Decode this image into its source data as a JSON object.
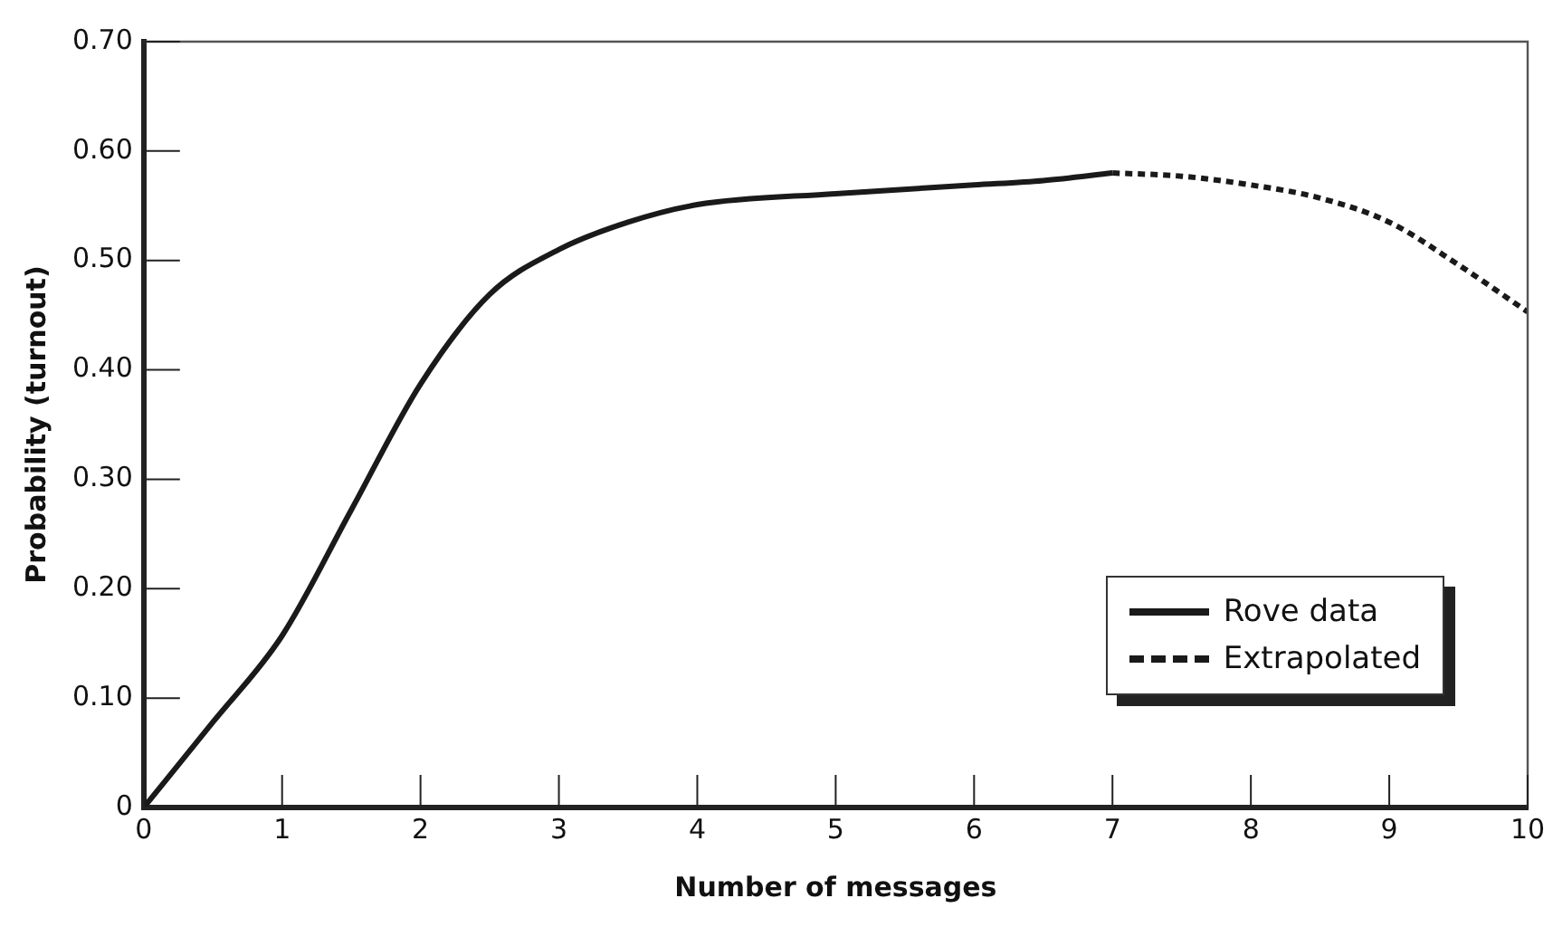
{
  "chart_data": {
    "type": "line",
    "xlabel": "Number of messages",
    "ylabel": "Probability (turnout)",
    "xlim": [
      0,
      10
    ],
    "xticks": [
      0,
      1,
      2,
      3,
      4,
      5,
      6,
      7,
      8,
      9,
      10
    ],
    "ylim": [
      0,
      0.7
    ],
    "yticks": [
      {
        "value": 0,
        "label": "0"
      },
      {
        "value": 0.1,
        "label": "0.10"
      },
      {
        "value": 0.2,
        "label": "0.20"
      },
      {
        "value": 0.3,
        "label": "0.30"
      },
      {
        "value": 0.4,
        "label": "0.40"
      },
      {
        "value": 0.5,
        "label": "0.50"
      },
      {
        "value": 0.6,
        "label": "0.60"
      },
      {
        "value": 0.7,
        "label": "0.70"
      }
    ],
    "legend": "bottom right",
    "marker": "none",
    "series": [
      {
        "name": "Rove data",
        "color": "#1a1a1a",
        "line_style": "solid",
        "x": [
          0,
          0.5,
          1,
          1.5,
          2,
          2.5,
          3,
          3.5,
          4,
          5,
          6,
          6.5,
          7
        ],
        "values": [
          0,
          0.078,
          0.157,
          0.272,
          0.387,
          0.469,
          0.51,
          0.535,
          0.551,
          0.561,
          0.569,
          0.573,
          0.58
        ]
      },
      {
        "name": "Extrapolated",
        "color": "#1a1a1a",
        "line_style": "dashed",
        "x": [
          7,
          7.5,
          8,
          8.5,
          9,
          9.5,
          10
        ],
        "values": [
          0.58,
          0.577,
          0.569,
          0.557,
          0.535,
          0.496,
          0.453
        ]
      }
    ]
  }
}
